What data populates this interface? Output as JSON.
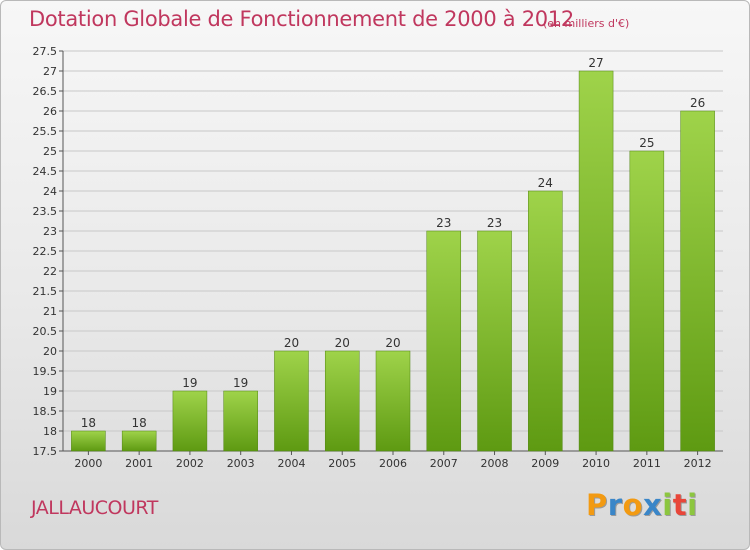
{
  "title": "Dotation Globale de Fonctionnement de 2000 à 2012",
  "unit_note": "(en milliers d'€)",
  "place": "JALLAUCOURT",
  "logo": {
    "letters": [
      {
        "char": "P",
        "color": "#f29a12"
      },
      {
        "char": "r",
        "color": "#3a86c8"
      },
      {
        "char": "o",
        "color": "#f29a12"
      },
      {
        "char": "x",
        "color": "#3a86c8"
      },
      {
        "char": "i",
        "color": "#8cc63f"
      },
      {
        "char": "t",
        "color": "#e8463a"
      },
      {
        "char": "i",
        "color": "#8cc63f"
      }
    ]
  },
  "colors": {
    "accent": "#c0375e",
    "bar_light": "#9fd34a",
    "bar_dark": "#5e9a12"
  },
  "chart_data": {
    "type": "bar",
    "categories": [
      "2000",
      "2001",
      "2002",
      "2003",
      "2004",
      "2005",
      "2006",
      "2007",
      "2008",
      "2009",
      "2010",
      "2011",
      "2012"
    ],
    "values": [
      18,
      18,
      19,
      19,
      20,
      20,
      20,
      23,
      23,
      24,
      27,
      25,
      26
    ],
    "data_labels": [
      "18",
      "18",
      "19",
      "19",
      "20",
      "20",
      "20",
      "23",
      "23",
      "24",
      "27",
      "25",
      "26"
    ],
    "ylim": [
      17.5,
      27.5
    ],
    "y_ticks": [
      "17.5",
      "18",
      "18.5",
      "19",
      "19.5",
      "20",
      "20.5",
      "21",
      "21.5",
      "22",
      "22.5",
      "23",
      "23.5",
      "24",
      "24.5",
      "25",
      "25.5",
      "26",
      "26.5",
      "27",
      "27.5"
    ],
    "grid": true,
    "legend": "none"
  }
}
